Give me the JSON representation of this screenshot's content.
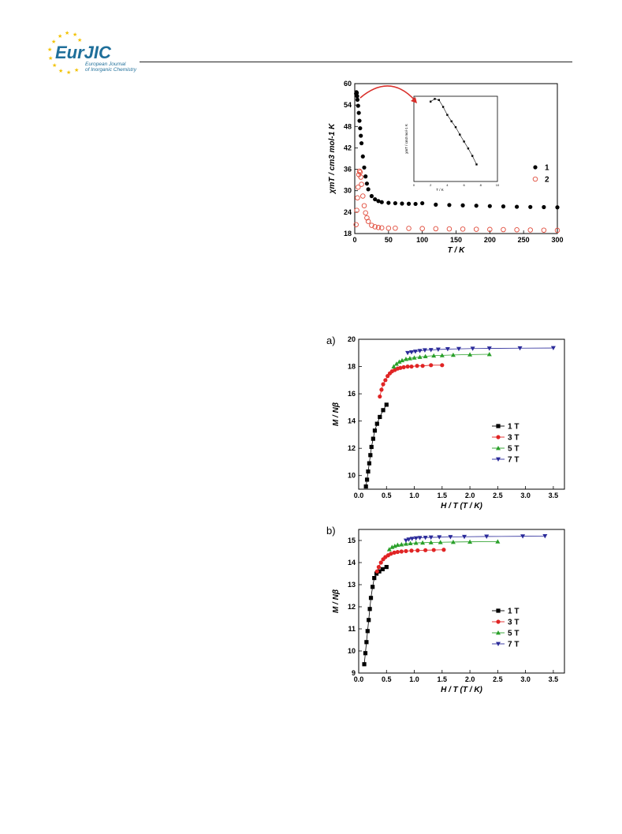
{
  "header": {
    "logo_text": "EurJIC",
    "logo_subtitle_line1": "European Journal",
    "logo_subtitle_line2": "of Inorganic Chemistry",
    "brand_colors": {
      "eur": "#1f6f9a",
      "jic": "#1f6f9a",
      "stars": "#f2c200"
    }
  },
  "chart_data": [
    {
      "type": "scatter",
      "id": "chiT",
      "xlabel": "T / K",
      "ylabel": "χmT / cm3 mol-1 K",
      "xlim": [
        0,
        300
      ],
      "ylim": [
        18,
        60
      ],
      "xticks": [
        0,
        50,
        100,
        150,
        200,
        250,
        300
      ],
      "yticks": [
        18,
        24,
        30,
        36,
        42,
        48,
        54,
        60
      ],
      "legend": "right",
      "series": [
        {
          "name": "1",
          "marker": "filled-circle",
          "color": "#000000",
          "x": [
            2,
            2.5,
            3,
            3.5,
            4,
            5,
            6,
            7,
            8,
            9,
            10,
            12,
            14,
            16,
            18,
            20,
            25,
            30,
            35,
            40,
            50,
            60,
            70,
            80,
            90,
            100,
            120,
            140,
            160,
            180,
            200,
            220,
            240,
            260,
            280,
            300
          ],
          "y": [
            57.2,
            57.6,
            57.4,
            56.5,
            55.5,
            53.8,
            51.8,
            49.6,
            47.5,
            45.4,
            43.3,
            39.6,
            36.5,
            34.0,
            32.0,
            30.4,
            28.5,
            27.6,
            27.1,
            26.8,
            26.6,
            26.5,
            26.4,
            26.35,
            26.3,
            26.5,
            26.1,
            26.0,
            25.9,
            25.8,
            25.7,
            25.6,
            25.5,
            25.45,
            25.4,
            25.35
          ]
        },
        {
          "name": "2",
          "marker": "open-circle",
          "color": "#e04a3a",
          "x": [
            2,
            3,
            4,
            5,
            6,
            7,
            8,
            9,
            10,
            12,
            14,
            16,
            18,
            20,
            25,
            30,
            35,
            40,
            50,
            60,
            80,
            100,
            120,
            140,
            160,
            180,
            200,
            220,
            240,
            260,
            280,
            300
          ],
          "y": [
            20.5,
            24.5,
            28.0,
            31.0,
            34.5,
            35.5,
            35.2,
            33.8,
            31.8,
            28.5,
            25.8,
            23.8,
            22.4,
            21.4,
            20.3,
            19.9,
            19.7,
            19.6,
            19.5,
            19.5,
            19.45,
            19.4,
            19.35,
            19.3,
            19.25,
            19.2,
            19.15,
            19.1,
            19.05,
            19.0,
            18.95,
            18.9
          ]
        }
      ],
      "inset": {
        "xlabel": "T / K",
        "ylabel": "χmT / cm3 mol-1 K",
        "xlim": [
          0,
          10
        ],
        "ylim": [
          42,
          58
        ],
        "xticks": [
          0,
          2,
          4,
          6,
          8,
          10
        ],
        "series": [
          {
            "name": "1",
            "x": [
              2,
              2.5,
              3,
              3.5,
              4,
              4.5,
              5,
              5.5,
              6,
              6.5,
              7,
              7.5
            ],
            "y": [
              57.0,
              57.5,
              57.3,
              56.0,
              54.5,
              53.3,
              52.2,
              50.8,
              49.5,
              48.2,
              46.8,
              45.2
            ]
          }
        ]
      }
    },
    {
      "type": "line",
      "id": "fig-a",
      "panel_label": "a)",
      "xlabel": "H / T (T / K)",
      "ylabel": "M / Nβ",
      "xlim": [
        0,
        3.7
      ],
      "ylim": [
        9,
        20
      ],
      "xticks": [
        0.0,
        0.5,
        1.0,
        1.5,
        2.0,
        2.5,
        3.0,
        3.5
      ],
      "yticks": [
        10,
        12,
        14,
        16,
        18,
        20
      ],
      "legend": "right",
      "series": [
        {
          "name": "1 T",
          "marker": "square",
          "color": "#000000",
          "x": [
            0.13,
            0.15,
            0.17,
            0.19,
            0.21,
            0.23,
            0.26,
            0.29,
            0.33,
            0.38,
            0.44,
            0.5
          ],
          "y": [
            9.2,
            9.7,
            10.3,
            10.9,
            11.5,
            12.1,
            12.7,
            13.3,
            13.8,
            14.3,
            14.8,
            15.2
          ]
        },
        {
          "name": "3 T",
          "marker": "circle",
          "color": "#e02424",
          "x": [
            0.38,
            0.41,
            0.44,
            0.48,
            0.52,
            0.56,
            0.6,
            0.65,
            0.7,
            0.75,
            0.81,
            0.88,
            0.95,
            1.05,
            1.15,
            1.3,
            1.5
          ],
          "y": [
            15.8,
            16.3,
            16.7,
            17.0,
            17.3,
            17.5,
            17.65,
            17.75,
            17.85,
            17.9,
            17.95,
            18.0,
            18.0,
            18.05,
            18.05,
            18.1,
            18.1
          ]
        },
        {
          "name": "5 T",
          "marker": "triangle-up",
          "color": "#2aa02a",
          "x": [
            0.63,
            0.68,
            0.73,
            0.78,
            0.85,
            0.92,
            1.0,
            1.1,
            1.2,
            1.35,
            1.5,
            1.7,
            2.0,
            2.35
          ],
          "y": [
            18.0,
            18.2,
            18.35,
            18.45,
            18.55,
            18.6,
            18.65,
            18.7,
            18.75,
            18.8,
            18.82,
            18.85,
            18.88,
            18.9
          ]
        },
        {
          "name": "7 T",
          "marker": "triangle-down",
          "color": "#2b2b9a",
          "x": [
            0.88,
            0.95,
            1.02,
            1.1,
            1.19,
            1.3,
            1.43,
            1.6,
            1.8,
            2.05,
            2.35,
            2.9,
            3.5
          ],
          "y": [
            19.0,
            19.05,
            19.1,
            19.15,
            19.2,
            19.22,
            19.25,
            19.28,
            19.3,
            19.32,
            19.33,
            19.35,
            19.36
          ]
        }
      ]
    },
    {
      "type": "line",
      "id": "fig-b",
      "panel_label": "b)",
      "xlabel": "H / T (T / K)",
      "ylabel": "M / Nβ",
      "xlim": [
        0,
        3.7
      ],
      "ylim": [
        9,
        15.5
      ],
      "xticks": [
        0.0,
        0.5,
        1.0,
        1.5,
        2.0,
        2.5,
        3.0,
        3.5
      ],
      "yticks": [
        9,
        10,
        11,
        12,
        13,
        14,
        15
      ],
      "legend": "right",
      "series": [
        {
          "name": "1 T",
          "marker": "square",
          "color": "#000000",
          "x": [
            0.1,
            0.12,
            0.14,
            0.16,
            0.18,
            0.2,
            0.22,
            0.25,
            0.28,
            0.32,
            0.37,
            0.43,
            0.5
          ],
          "y": [
            9.4,
            9.9,
            10.4,
            10.9,
            11.4,
            11.9,
            12.4,
            12.9,
            13.3,
            13.5,
            13.6,
            13.7,
            13.8
          ]
        },
        {
          "name": "3 T",
          "marker": "circle",
          "color": "#e02424",
          "x": [
            0.33,
            0.36,
            0.4,
            0.44,
            0.48,
            0.53,
            0.58,
            0.64,
            0.7,
            0.77,
            0.85,
            0.95,
            1.06,
            1.2,
            1.35,
            1.53
          ],
          "y": [
            13.6,
            13.8,
            14.0,
            14.15,
            14.25,
            14.33,
            14.4,
            14.45,
            14.48,
            14.5,
            14.52,
            14.54,
            14.55,
            14.56,
            14.57,
            14.58
          ]
        },
        {
          "name": "5 T",
          "marker": "triangle-up",
          "color": "#2aa02a",
          "x": [
            0.55,
            0.6,
            0.65,
            0.7,
            0.77,
            0.85,
            0.93,
            1.03,
            1.15,
            1.3,
            1.47,
            1.7,
            2.0,
            2.5
          ],
          "y": [
            14.6,
            14.7,
            14.75,
            14.8,
            14.82,
            14.85,
            14.87,
            14.89,
            14.9,
            14.91,
            14.92,
            14.93,
            14.94,
            14.95
          ]
        },
        {
          "name": "7 T",
          "marker": "triangle-down",
          "color": "#2b2b9a",
          "x": [
            0.85,
            0.9,
            0.96,
            1.03,
            1.1,
            1.2,
            1.3,
            1.45,
            1.65,
            1.9,
            2.3,
            2.95,
            3.35
          ],
          "y": [
            15.0,
            15.05,
            15.08,
            15.1,
            15.12,
            15.13,
            15.14,
            15.15,
            15.16,
            15.17,
            15.18,
            15.19,
            15.2
          ]
        }
      ]
    }
  ]
}
